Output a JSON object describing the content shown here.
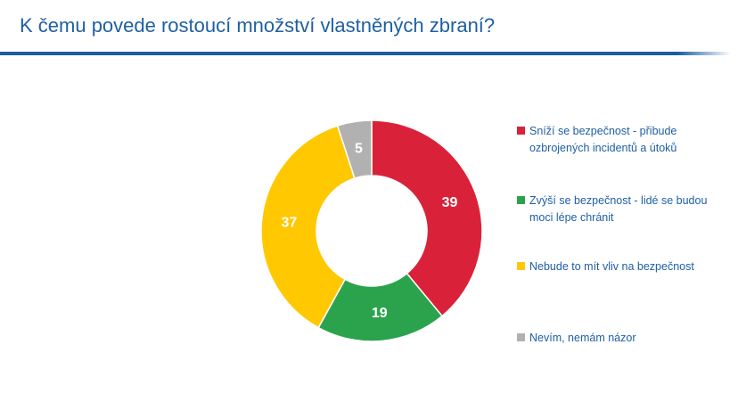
{
  "header": {
    "title": "K čemu povede rostoucí množství vlastněných zbraní?"
  },
  "chart_data": {
    "type": "pie",
    "categories": [
      "Sníží se bezpečnost - přibude ozbrojených incidentů a útoků",
      "Zvýší se bezpečnost - lidé se budou moci lépe chránit",
      "Nebude to mít vliv na bezpečnost",
      "Nevím, nemám názor"
    ],
    "values": [
      39,
      19,
      37,
      5
    ],
    "data_labels": [
      "39",
      "19",
      "37",
      "5"
    ],
    "colors": [
      "#d9223a",
      "#2ba34d",
      "#ffc800",
      "#b1b1b1"
    ],
    "legend": "right",
    "style": "donut"
  }
}
